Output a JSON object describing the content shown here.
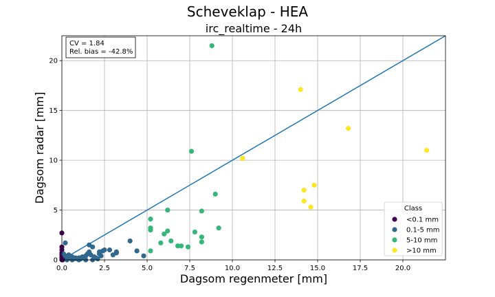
{
  "chart_data": {
    "type": "scatter",
    "suptitle": "Scheveklap - HEA",
    "title": "irc_realtime - 24h",
    "xlabel": "Dagsom regenmeter [mm]",
    "ylabel": "Dagsom radar [mm]",
    "xlim": [
      0,
      22.5
    ],
    "ylim": [
      0,
      22.5
    ],
    "xticks": [
      "0.0",
      "2.5",
      "5.0",
      "7.5",
      "10.0",
      "12.5",
      "15.0",
      "17.5",
      "20.0"
    ],
    "yticks": [
      "0",
      "5",
      "10",
      "15",
      "20"
    ],
    "grid": true,
    "stats": {
      "cv": "CV = 1.84",
      "bias": "Rel. bias = -42.8%"
    },
    "reference_line": {
      "x": [
        0,
        22.5
      ],
      "y": [
        0,
        22.5
      ],
      "color": "#1f77b4"
    },
    "legend": {
      "title": "Class",
      "placement": "lower right"
    },
    "series": [
      {
        "name": "<0.1 mm",
        "color": "#440154",
        "points": [
          [
            0,
            2.7
          ],
          [
            0,
            1.3
          ],
          [
            0,
            1.0
          ],
          [
            0,
            0.7
          ],
          [
            0,
            0.5
          ],
          [
            0,
            0.3
          ],
          [
            0,
            0.2
          ],
          [
            0.05,
            0.1
          ],
          [
            0,
            0.0
          ],
          [
            0.05,
            0.0
          ]
        ]
      },
      {
        "name": "0.1-5 mm",
        "color": "#31688e",
        "points": [
          [
            0.2,
            1.7
          ],
          [
            0.1,
            0.6
          ],
          [
            0.2,
            0.4
          ],
          [
            0.3,
            0.3
          ],
          [
            0.4,
            0.5
          ],
          [
            0.5,
            0.2
          ],
          [
            0.6,
            0.3
          ],
          [
            0.7,
            0.1
          ],
          [
            0.8,
            0.2
          ],
          [
            0.9,
            0.1
          ],
          [
            1.0,
            0.2
          ],
          [
            1.1,
            0.1
          ],
          [
            1.2,
            0.3
          ],
          [
            1.3,
            0.2
          ],
          [
            1.4,
            0.4
          ],
          [
            1.5,
            0.6
          ],
          [
            1.6,
            1.5
          ],
          [
            1.8,
            1.3
          ],
          [
            1.6,
            0.8
          ],
          [
            1.7,
            0.5
          ],
          [
            1.9,
            0.3
          ],
          [
            2.0,
            0.2
          ],
          [
            2.1,
            0.1
          ],
          [
            2.2,
            0.6
          ],
          [
            2.2,
            0.8
          ],
          [
            2.3,
            0.4
          ],
          [
            2.4,
            0.9
          ],
          [
            2.5,
            1.0
          ],
          [
            2.8,
            1.0
          ],
          [
            3.0,
            0.5
          ],
          [
            3.2,
            0.8
          ],
          [
            3.2,
            0.7
          ],
          [
            4.0,
            1.9
          ],
          [
            4.4,
            0.9
          ],
          [
            4.8,
            0.4
          ],
          [
            0.3,
            0.0
          ],
          [
            0.6,
            0.0
          ],
          [
            1.0,
            0.0
          ],
          [
            1.4,
            0.0
          ],
          [
            1.8,
            0.0
          ]
        ]
      },
      {
        "name": "5-10 mm",
        "color": "#35b779",
        "points": [
          [
            8.8,
            21.5
          ],
          [
            7.6,
            10.9
          ],
          [
            9.0,
            6.6
          ],
          [
            6.2,
            5.0
          ],
          [
            8.2,
            4.9
          ],
          [
            5.2,
            4.1
          ],
          [
            5.2,
            3.2
          ],
          [
            5.2,
            3.0
          ],
          [
            9.2,
            3.2
          ],
          [
            6.2,
            2.9
          ],
          [
            7.8,
            2.8
          ],
          [
            6.0,
            2.6
          ],
          [
            8.2,
            2.3
          ],
          [
            6.4,
            1.9
          ],
          [
            8.2,
            1.8
          ],
          [
            5.8,
            1.7
          ],
          [
            6.8,
            1.4
          ],
          [
            7.0,
            1.4
          ],
          [
            7.4,
            1.3
          ],
          [
            5.2,
            0.9
          ]
        ]
      },
      {
        "name": ">10 mm",
        "color": "#fde725",
        "points": [
          [
            14.0,
            17.1
          ],
          [
            16.8,
            13.2
          ],
          [
            21.4,
            11.0
          ],
          [
            10.6,
            10.2
          ],
          [
            14.8,
            7.5
          ],
          [
            14.2,
            7.0
          ],
          [
            14.2,
            5.9
          ],
          [
            14.6,
            5.3
          ]
        ]
      }
    ]
  }
}
